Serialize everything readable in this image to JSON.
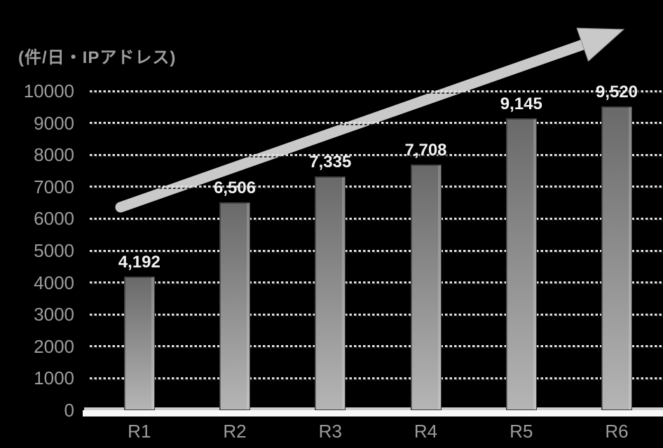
{
  "chart_data": {
    "type": "bar",
    "title": "",
    "ylabel": "(件/日・IPアドレス)",
    "xlabel": "",
    "categories": [
      "R1",
      "R2",
      "R3",
      "R4",
      "R5",
      "R6"
    ],
    "values": [
      4192,
      6506,
      7335,
      7708,
      9145,
      9520
    ],
    "value_labels": [
      "4,192",
      "6,506",
      "7,335",
      "7,708",
      "9,145",
      "9,520"
    ],
    "ylim": [
      0,
      10000
    ],
    "yticks": [
      0,
      1000,
      2000,
      3000,
      4000,
      5000,
      6000,
      7000,
      8000,
      9000,
      10000
    ],
    "ytick_labels": [
      "0",
      "1000",
      "2000",
      "3000",
      "4000",
      "5000",
      "6000",
      "7000",
      "8000",
      "9000",
      "10000"
    ],
    "grid": "horizontal-dashed",
    "legend": "none",
    "annotations": [
      {
        "type": "arrow",
        "description": "gray block arrow rising from lower-left to upper-right indicating increasing trend"
      }
    ],
    "colors": {
      "background": "#000000",
      "bar_top": "#696969",
      "bar_bottom": "#b5b5b5",
      "bar_edge": "#3c3c3c",
      "gridline": "#e2e2e2",
      "grid_shadow": "#1c1c1c",
      "tick_text": "#9d9d9d",
      "value_text": "#f2f2f2",
      "arrow_fill": "#c9c9c9",
      "arrow_edge": "#8f8f8f",
      "baseline": "#f8f8f8"
    }
  }
}
